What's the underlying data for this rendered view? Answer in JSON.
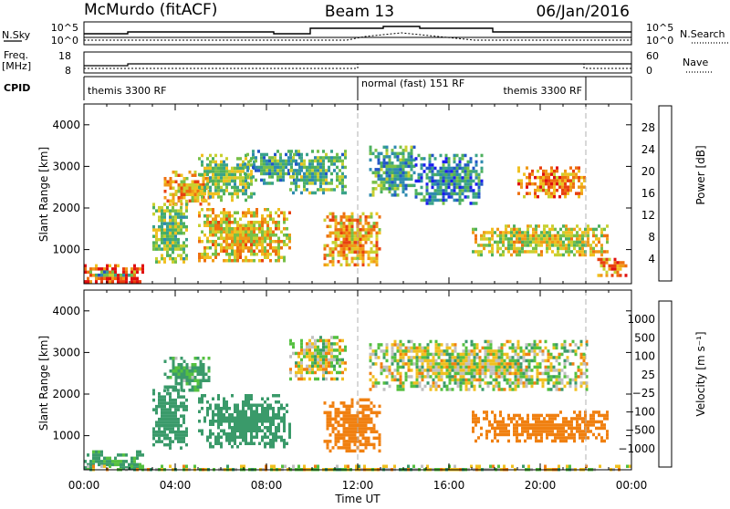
{
  "header": {
    "station": "McMurdo (fitACF)",
    "beam": "Beam 13",
    "date": "06/Jan/2016"
  },
  "status_panels": {
    "nsky_label": "N.Sky",
    "nsearch_label": "N.Search",
    "noise_ticks_left": [
      "10^5",
      "10^0"
    ],
    "noise_ticks_right": [
      "10^5",
      "10^0"
    ],
    "freq_label": "Freq.",
    "freq_unit": "[MHz]",
    "freq_ticks": [
      "18",
      "8"
    ],
    "nave_label": "Nave",
    "nave_ticks": [
      "60",
      "0"
    ],
    "cpid_label": "CPID",
    "cpid_segments": [
      {
        "label": "themis 3300 RF",
        "start_hour": 0,
        "end_hour": 12
      },
      {
        "label": "normal (fast) 151 RF",
        "start_hour": 12,
        "end_hour": 22
      },
      {
        "label": "themis 3300 RF",
        "start_hour": 22,
        "end_hour": 24
      }
    ]
  },
  "chart_data": [
    {
      "type": "heatmap",
      "panel": "power",
      "ylabel": "Slant Range [km]",
      "xlabel": "Time UT",
      "xlim": [
        0,
        24
      ],
      "ylim": [
        180,
        4500
      ],
      "x_ticks": [
        "00:00",
        "04:00",
        "08:00",
        "12:00",
        "16:00",
        "20:00",
        "00:00"
      ],
      "y_ticks": [
        1000,
        2000,
        3000,
        4000
      ],
      "colorbar": {
        "label": "Power [dB]",
        "ticks": [
          4,
          8,
          12,
          16,
          20,
          24,
          28
        ],
        "range": [
          0,
          32
        ],
        "colors": [
          "#1c1cf0",
          "#2255c8",
          "#2e8ab0",
          "#3aa38a",
          "#4db05e",
          "#78c048",
          "#c8d030",
          "#f0c020",
          "#f09a18",
          "#ee7010",
          "#e84010",
          "#e01010"
        ]
      },
      "regions": [
        {
          "t0": 0.0,
          "t1": 2.6,
          "r0": 200,
          "r1": 650,
          "power": 28
        },
        {
          "t0": 0.0,
          "t1": 2.2,
          "r0": 350,
          "r1": 500,
          "power": 10
        },
        {
          "t0": 3.5,
          "t1": 5.5,
          "r0": 2100,
          "r1": 2900,
          "power": 22
        },
        {
          "t0": 3.0,
          "t1": 4.5,
          "r0": 700,
          "r1": 2200,
          "power": 14
        },
        {
          "t0": 5.0,
          "t1": 9.0,
          "r0": 700,
          "r1": 2000,
          "power": 20
        },
        {
          "t0": 5.0,
          "t1": 7.5,
          "r0": 2200,
          "r1": 3300,
          "power": 14
        },
        {
          "t0": 7.0,
          "t1": 9.5,
          "r0": 2600,
          "r1": 3400,
          "power": 10
        },
        {
          "t0": 9.0,
          "t1": 11.5,
          "r0": 2400,
          "r1": 3400,
          "power": 12
        },
        {
          "t0": 10.5,
          "t1": 13.0,
          "r0": 600,
          "r1": 1900,
          "power": 22
        },
        {
          "t0": 12.5,
          "t1": 14.5,
          "r0": 2300,
          "r1": 3500,
          "power": 10
        },
        {
          "t0": 14.5,
          "t1": 17.5,
          "r0": 2100,
          "r1": 3300,
          "power": 8
        },
        {
          "t0": 17.0,
          "t1": 23.0,
          "r0": 900,
          "r1": 1600,
          "power": 18
        },
        {
          "t0": 19.0,
          "t1": 22.0,
          "r0": 2300,
          "r1": 3000,
          "power": 24
        },
        {
          "t0": 22.5,
          "t1": 23.8,
          "r0": 400,
          "r1": 800,
          "power": 24
        }
      ]
    },
    {
      "type": "heatmap",
      "panel": "velocity",
      "ylabel": "Slant Range [km]",
      "xlabel": "Time UT",
      "xlim": [
        0,
        24
      ],
      "ylim": [
        180,
        4500
      ],
      "x_ticks": [
        "00:00",
        "04:00",
        "08:00",
        "12:00",
        "16:00",
        "20:00",
        "00:00"
      ],
      "y_ticks": [
        1000,
        2000,
        3000,
        4000
      ],
      "colorbar": {
        "label": "Velocity [m s⁻¹]",
        "ticks": [
          "1000",
          "500",
          "100",
          "25",
          "−25",
          "−100",
          "−500",
          "−1000"
        ],
        "colors": [
          "#2030c0",
          "#2a6ab0",
          "#3a9a6a",
          "#55c040",
          "#c0c0c0",
          "#f0c020",
          "#f08010",
          "#e83010",
          "#e01010"
        ]
      },
      "regions": [
        {
          "t0": 0.0,
          "t1": 2.6,
          "r0": 200,
          "r1": 650,
          "vel": 150
        },
        {
          "t0": 3.5,
          "t1": 5.5,
          "r0": 2100,
          "r1": 2900,
          "vel": 150
        },
        {
          "t0": 3.0,
          "t1": 4.5,
          "r0": 700,
          "r1": 2200,
          "vel": 300
        },
        {
          "t0": 5.0,
          "t1": 9.0,
          "r0": 700,
          "r1": 2000,
          "vel": 300
        },
        {
          "t0": 9.0,
          "t1": 11.5,
          "r0": 2400,
          "r1": 3400,
          "vel": 0
        },
        {
          "t0": 10.5,
          "t1": 13.0,
          "r0": 600,
          "r1": 1900,
          "vel": -300
        },
        {
          "t0": 12.5,
          "t1": 22.0,
          "r0": 2100,
          "r1": 3300,
          "vel": 0
        },
        {
          "t0": 17.0,
          "t1": 23.0,
          "r0": 900,
          "r1": 1600,
          "vel": -300
        },
        {
          "t0": 0.0,
          "t1": 24.0,
          "r0": 180,
          "r1": 300,
          "vel": 0
        }
      ]
    }
  ]
}
